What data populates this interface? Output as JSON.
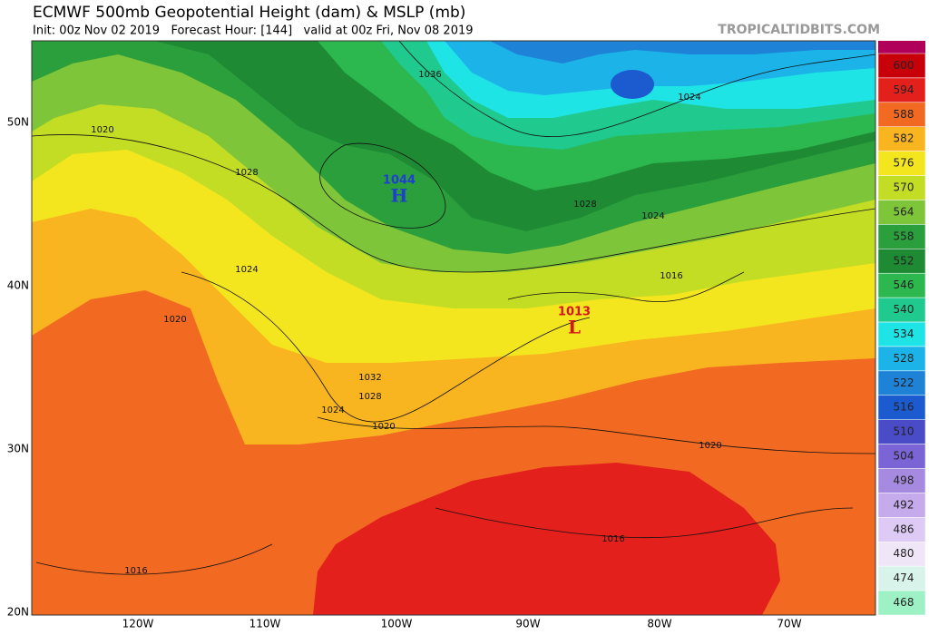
{
  "header": {
    "title": "ECMWF 500mb Geopotential Height (dam) & MSLP (mb)",
    "subtitle": "Init: 00z Nov 02 2019   Forecast Hour: [144]   valid at 00z Fri, Nov 08 2019",
    "credit": "TROPICALTIDBITS.COM"
  },
  "colorbar": {
    "labels": [
      "600",
      "594",
      "588",
      "582",
      "576",
      "570",
      "564",
      "558",
      "552",
      "546",
      "540",
      "534",
      "528",
      "522",
      "516",
      "510",
      "504",
      "498",
      "492",
      "486",
      "480",
      "474",
      "468"
    ],
    "colors": [
      "#b0005a",
      "#c8000a",
      "#e3201c",
      "#f26a22",
      "#f9b51f",
      "#f4e61e",
      "#c2dd24",
      "#7ec53a",
      "#2a9f3c",
      "#1e8a34",
      "#2cb84e",
      "#20c98e",
      "#1fe4e6",
      "#1cb3e8",
      "#1e82d6",
      "#1c5bcf",
      "#4a4bc6",
      "#7a64d6",
      "#a68ae0",
      "#c5aaec",
      "#ddcaf5",
      "#efe6f8",
      "#d8f4ea",
      "#9ef0c5"
    ]
  },
  "axes": {
    "lat_labels": [
      "50N",
      "40N",
      "30N",
      "20N"
    ],
    "lon_labels": [
      "120W",
      "110W",
      "100W",
      "90W",
      "80W",
      "70W"
    ]
  },
  "centers": [
    {
      "value": "1044",
      "letter": "H"
    },
    {
      "value": "1013",
      "letter": "L"
    }
  ],
  "isobar_labels": [
    "1036",
    "1024",
    "1020",
    "1028",
    "1028",
    "1024",
    "1024",
    "1016",
    "1020",
    "1032",
    "1028",
    "1024",
    "1020",
    "1020",
    "1016",
    "1016"
  ]
}
